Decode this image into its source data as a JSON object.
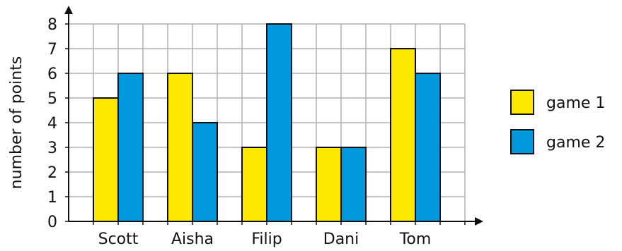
{
  "chart_data": {
    "type": "bar",
    "title": "",
    "xlabel": "",
    "ylabel": "number of points",
    "categories": [
      "Scott",
      "Aisha",
      "Filip",
      "Dani",
      "Tom"
    ],
    "series": [
      {
        "name": "game 1",
        "values": [
          5,
          6,
          3,
          3,
          7
        ],
        "color": "#ffe800"
      },
      {
        "name": "game 2",
        "values": [
          6,
          4,
          8,
          3,
          6
        ],
        "color": "#0099dd"
      }
    ],
    "ylim": [
      0,
      8
    ],
    "yticks": [
      "0",
      "1",
      "2",
      "3",
      "4",
      "5",
      "6",
      "7",
      "8"
    ],
    "grid": true,
    "legend_position": "right",
    "colors": {
      "grid": "#b0b0b0",
      "axis": "#111111",
      "bar_outline": "#111111"
    }
  }
}
